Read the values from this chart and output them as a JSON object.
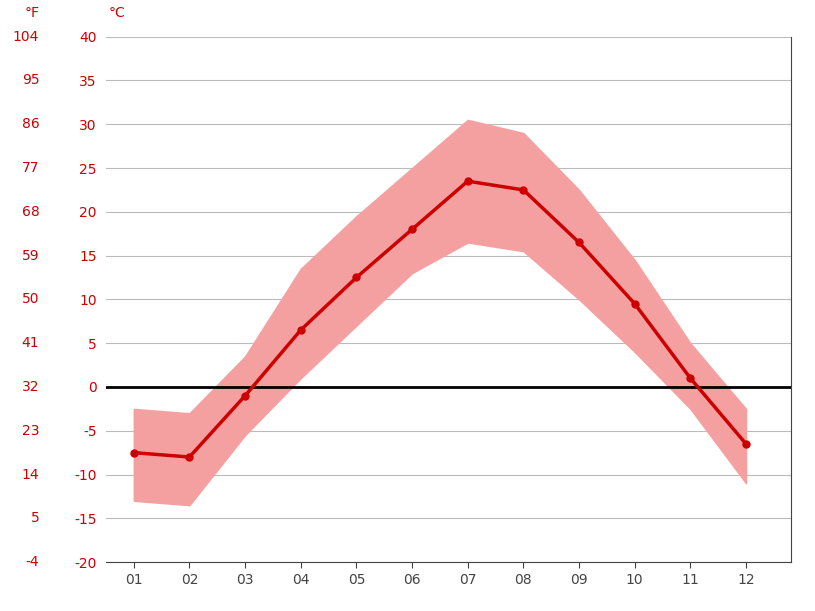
{
  "months": [
    1,
    2,
    3,
    4,
    5,
    6,
    7,
    8,
    9,
    10,
    11,
    12
  ],
  "month_labels": [
    "01",
    "02",
    "03",
    "04",
    "05",
    "06",
    "07",
    "08",
    "09",
    "10",
    "11",
    "12"
  ],
  "avg_mean": [
    -7.5,
    -8.0,
    -1.0,
    6.5,
    12.5,
    18.0,
    23.5,
    22.5,
    16.5,
    9.5,
    1.0,
    -6.5
  ],
  "band_upper": [
    -2.5,
    -3.0,
    3.5,
    13.5,
    19.5,
    25.0,
    30.5,
    29.0,
    22.5,
    14.5,
    5.0,
    -2.5
  ],
  "band_lower": [
    -13.0,
    -13.5,
    -5.5,
    1.0,
    7.0,
    13.0,
    16.5,
    15.5,
    10.0,
    4.0,
    -2.5,
    -11.0
  ],
  "celsius_ticks": [
    -20,
    -15,
    -10,
    -5,
    0,
    5,
    10,
    15,
    20,
    25,
    30,
    35,
    40
  ],
  "fahrenheit_ticks": [
    -4,
    5,
    14,
    23,
    32,
    41,
    50,
    59,
    68,
    77,
    86,
    95,
    104
  ],
  "line_color": "#cc0000",
  "band_color": "#f5a0a0",
  "zero_line_color": "#000000",
  "grid_color": "#bbbbbb",
  "axis_label_color": "#cc0000",
  "tick_color": "#444444",
  "background_color": "#ffffff"
}
